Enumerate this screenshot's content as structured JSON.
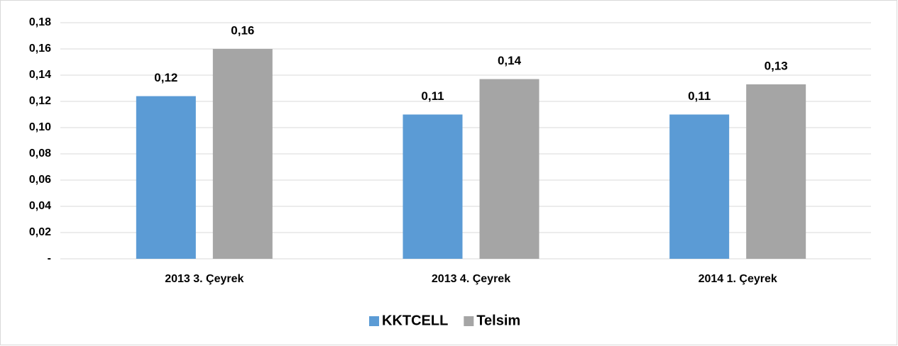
{
  "chart_data": {
    "type": "bar",
    "categories": [
      "2013 3. Çeyrek",
      "2013 4. Çeyrek",
      "2014 1. Çeyrek"
    ],
    "series": [
      {
        "name": "KKTCELL",
        "color": "#5b9bd5",
        "values": [
          0.124,
          0.11,
          0.11
        ],
        "value_labels": [
          "0,12",
          "0,11",
          "0,11"
        ]
      },
      {
        "name": "Telsim",
        "color": "#a5a5a5",
        "values": [
          0.16,
          0.137,
          0.133
        ],
        "value_labels": [
          "0,16",
          "0,14",
          "0,13"
        ]
      }
    ],
    "ylim": [
      0,
      0.18
    ],
    "yticks": [
      {
        "value": 0,
        "label": "-"
      },
      {
        "value": 0.02,
        "label": "0,02"
      },
      {
        "value": 0.04,
        "label": "0,04"
      },
      {
        "value": 0.06,
        "label": "0,06"
      },
      {
        "value": 0.08,
        "label": "0,08"
      },
      {
        "value": 0.1,
        "label": "0,10"
      },
      {
        "value": 0.12,
        "label": "0,12"
      },
      {
        "value": 0.14,
        "label": "0,14"
      },
      {
        "value": 0.16,
        "label": "0,16"
      },
      {
        "value": 0.18,
        "label": "0,18"
      }
    ],
    "grid": true,
    "legend": "bottom"
  }
}
